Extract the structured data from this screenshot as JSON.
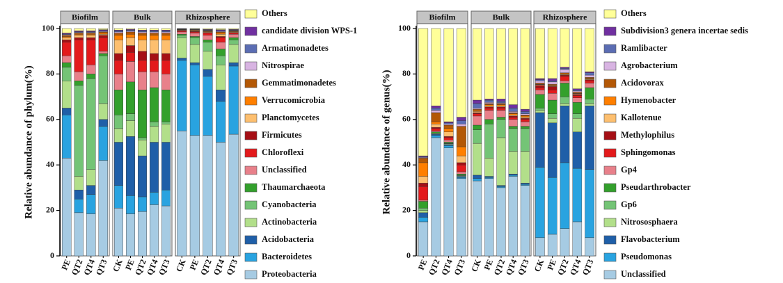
{
  "chart_data": [
    {
      "type": "bar",
      "stacked": true,
      "ylabel": "Relative abundance of phylum(%)",
      "ylim": [
        0,
        100
      ],
      "yticks": [
        0,
        20,
        40,
        60,
        80,
        100
      ],
      "panels": [
        {
          "title": "Biofilm",
          "categories": [
            "PE",
            "QT2",
            "QT4",
            "QT3"
          ]
        },
        {
          "title": "Bulk",
          "categories": [
            "CK",
            "PE",
            "QT2",
            "QT4",
            "QT3"
          ]
        },
        {
          "title": "Rhizosphere",
          "categories": [
            "CK",
            "PE",
            "QT2",
            "QT4",
            "QT3"
          ]
        }
      ],
      "series": [
        {
          "name": "Proteobacteria",
          "color": "#a6cbe3",
          "values": [
            43,
            19,
            18.5,
            42,
            21,
            18.5,
            19.5,
            22.5,
            22,
            55,
            53,
            53,
            50,
            53.5
          ]
        },
        {
          "name": "Bacteroidetes",
          "color": "#29a3e0",
          "values": [
            19,
            6,
            8.5,
            15,
            10,
            8,
            6.5,
            5.5,
            7,
            31,
            31,
            26,
            18,
            30
          ]
        },
        {
          "name": "Acidobacteria",
          "color": "#1f5fa8",
          "values": [
            3,
            4,
            4,
            3,
            19,
            26,
            18,
            22,
            21,
            1,
            1,
            3,
            5,
            1.5
          ]
        },
        {
          "name": "Actinobacteria",
          "color": "#b2df8a",
          "values": [
            12,
            6,
            7,
            7,
            6,
            7,
            7,
            7,
            8,
            9,
            8,
            8,
            11,
            8
          ]
        },
        {
          "name": "Cyanobacteria",
          "color": "#74c476",
          "values": [
            6,
            40,
            40,
            21,
            6,
            3,
            1,
            2,
            1,
            1,
            3,
            4,
            4,
            2
          ]
        },
        {
          "name": "Thaumarchaeota",
          "color": "#33a02c",
          "values": [
            2,
            2,
            2,
            1,
            11,
            14,
            21,
            15,
            14,
            0.5,
            0.5,
            1,
            3,
            1
          ]
        },
        {
          "name": "Unclassified",
          "color": "#e8808a",
          "values": [
            3,
            4,
            4,
            1,
            7,
            9,
            8,
            7,
            7,
            1,
            1.5,
            2,
            3,
            1.5
          ]
        },
        {
          "name": "Chloroflexi",
          "color": "#e31a1c",
          "values": [
            6,
            14,
            11,
            6,
            6,
            4,
            5,
            5,
            6,
            0.5,
            0.5,
            1,
            2,
            0.5
          ]
        },
        {
          "name": "Firmicutes",
          "color": "#a50f15",
          "values": [
            1,
            1,
            1,
            1,
            3,
            3,
            4,
            3,
            3,
            0.2,
            0.3,
            0.3,
            0.5,
            0.3
          ]
        },
        {
          "name": "Planctomycetes",
          "color": "#fdbf6f",
          "values": [
            1,
            1,
            1,
            0.5,
            6,
            3.5,
            5,
            6,
            6,
            0.2,
            0.3,
            0.3,
            1,
            0.3
          ]
        },
        {
          "name": "Verrucomicrobia",
          "color": "#ff7f00",
          "values": [
            0.5,
            0.5,
            0.5,
            0.5,
            2,
            1.5,
            2,
            2,
            2,
            0.1,
            0.2,
            0.2,
            0.5,
            0.2
          ]
        },
        {
          "name": "Gemmatimonadetes",
          "color": "#b35806",
          "values": [
            0.5,
            0.5,
            0.5,
            0.5,
            1,
            1,
            1,
            1,
            1,
            0.1,
            0.2,
            0.2,
            0.5,
            0.2
          ]
        },
        {
          "name": "Nitrospirae",
          "color": "#d8b4e2",
          "values": [
            0.3,
            0.3,
            0.3,
            0.3,
            0.5,
            0.4,
            0.5,
            0.5,
            0.5,
            0.1,
            0.1,
            0.2,
            0.3,
            0.2
          ]
        },
        {
          "name": "Armatimonadetes",
          "color": "#5b6db3",
          "values": [
            0.3,
            0.3,
            0.3,
            0.3,
            0.5,
            0.4,
            0.5,
            0.5,
            0.5,
            0.1,
            0.1,
            0.2,
            0.3,
            0.2
          ]
        },
        {
          "name": "candidate division WPS-1",
          "color": "#7030a0",
          "values": [
            0.4,
            0.4,
            0.4,
            0.4,
            0.3,
            0.3,
            0.3,
            0.3,
            0.3,
            0.1,
            0.1,
            0.2,
            0.4,
            0.2
          ]
        },
        {
          "name": "Others",
          "color": "#ffff99",
          "values": [
            2,
            1,
            1,
            0.5,
            0.7,
            0.4,
            0.7,
            0.7,
            0.7,
            0.1,
            0.2,
            0.4,
            0.5,
            0.4
          ]
        }
      ]
    },
    {
      "type": "bar",
      "stacked": true,
      "ylabel": "Relative abundance of genus(%)",
      "ylim": [
        0,
        100
      ],
      "yticks": [
        0,
        20,
        40,
        60,
        80,
        100
      ],
      "panels": [
        {
          "title": "Biofilm",
          "categories": [
            "PE",
            "QT2",
            "QT4",
            "QT3"
          ]
        },
        {
          "title": "Bulk",
          "categories": [
            "CK",
            "PE",
            "QT2",
            "QT4",
            "QT3"
          ]
        },
        {
          "title": "Rhizosphere",
          "categories": [
            "CK",
            "PE",
            "QT2",
            "QT4",
            "QT3"
          ]
        }
      ],
      "series": [
        {
          "name": "Unclassified",
          "color": "#a6cbe3",
          "values": [
            15,
            52,
            47.5,
            34,
            33,
            34,
            30,
            35,
            31,
            8,
            9.5,
            12,
            15,
            8
          ]
        },
        {
          "name": "Pseudomonas",
          "color": "#29a3e0",
          "values": [
            2,
            1,
            1,
            0.5,
            1,
            0.5,
            0.5,
            0.5,
            0.5,
            31,
            25,
            29,
            23.5,
            30
          ]
        },
        {
          "name": "Flavobacterium",
          "color": "#1f5fa8",
          "values": [
            2,
            0.5,
            0.5,
            0.5,
            1.5,
            0.5,
            0.5,
            0.5,
            0.5,
            24,
            24,
            25,
            16,
            28
          ]
        },
        {
          "name": "Nitrososphaera",
          "color": "#b2df8a",
          "values": [
            1,
            0.3,
            0.3,
            0.3,
            14,
            8,
            21,
            10,
            14,
            1,
            2,
            1,
            6,
            1
          ]
        },
        {
          "name": "Gp6",
          "color": "#74c476",
          "values": [
            1,
            0.2,
            0.2,
            0.2,
            6,
            15,
            8,
            10,
            10,
            1,
            2,
            3,
            2,
            2
          ]
        },
        {
          "name": "Pseudarthrobacter",
          "color": "#33a02c",
          "values": [
            3,
            0.5,
            0.5,
            0.5,
            2,
            2,
            1,
            1,
            1,
            6,
            6,
            6,
            5,
            5
          ]
        },
        {
          "name": "Gp4",
          "color": "#e8808a",
          "values": [
            0.5,
            0.5,
            1,
            1,
            4,
            4,
            3,
            3,
            2,
            2,
            3,
            1,
            2,
            2
          ]
        },
        {
          "name": "Sphingomonas",
          "color": "#e31a1c",
          "values": [
            6,
            1,
            1,
            3,
            1,
            1,
            1,
            1,
            1,
            1,
            1.5,
            2,
            1,
            1
          ]
        },
        {
          "name": "Methylophilus",
          "color": "#a50f15",
          "values": [
            1.5,
            0.5,
            0.5,
            1,
            0.5,
            0.5,
            0.5,
            0.5,
            0.5,
            1,
            1.5,
            0.5,
            0.5,
            0.5
          ]
        },
        {
          "name": "Kallotenue",
          "color": "#fdbf6f",
          "values": [
            3,
            1.5,
            2,
            3,
            0.5,
            0.5,
            0.5,
            0.5,
            0.5,
            0.3,
            0.3,
            0.3,
            0.3,
            0.3
          ]
        },
        {
          "name": "Hymenobacter",
          "color": "#ff7f00",
          "values": [
            6,
            1,
            1.5,
            4,
            0.5,
            0.5,
            0.5,
            0.5,
            0.5,
            0.2,
            0.2,
            0.2,
            0.2,
            0.2
          ]
        },
        {
          "name": "Acidovorax",
          "color": "#b35806",
          "values": [
            2,
            4,
            1.5,
            9,
            0.5,
            0.5,
            0.5,
            0.5,
            0.5,
            0.5,
            0.5,
            0.5,
            0.5,
            0.5
          ]
        },
        {
          "name": "Agrobacterium",
          "color": "#d8b4e2",
          "values": [
            0.3,
            1,
            0.5,
            1,
            0.5,
            0.5,
            0.3,
            0.5,
            0.5,
            1,
            1,
            1.5,
            0.5,
            1
          ]
        },
        {
          "name": "Ramlibacter",
          "color": "#5b6db3",
          "values": [
            0.3,
            1,
            0.5,
            1.5,
            2,
            1,
            0.7,
            1.5,
            1,
            0.5,
            0.5,
            0.5,
            0.5,
            1
          ]
        },
        {
          "name": "Subdivision3 genera incertae sedis",
          "color": "#7030a0",
          "values": [
            0.4,
            1,
            0.5,
            1.5,
            1.5,
            0.5,
            1,
            1.5,
            1,
            0.5,
            1,
            0.5,
            0.5,
            0.5
          ]
        },
        {
          "name": "Others",
          "color": "#ffff99",
          "values": [
            56,
            34,
            41,
            39,
            31.5,
            31,
            31,
            33.5,
            35.5,
            22,
            22,
            17,
            26.5,
            19
          ]
        }
      ]
    }
  ]
}
